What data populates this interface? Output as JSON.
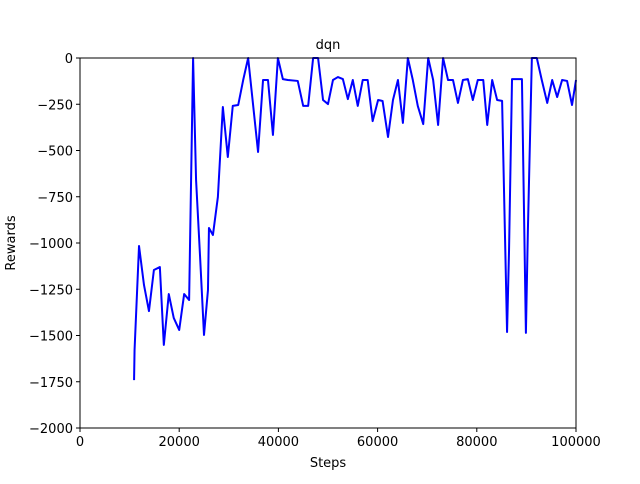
{
  "chart_data": {
    "type": "line",
    "title": "dqn",
    "x_label": "Steps",
    "y_label": "Rewards",
    "color": "#0000ff",
    "x": [
      10900,
      11000,
      11900,
      12900,
      13900,
      14900,
      16100,
      16900,
      17900,
      18900,
      20000,
      21000,
      22000,
      22800,
      23400,
      24200,
      25000,
      25800,
      26000,
      26800,
      27800,
      28800,
      29800,
      30800,
      31900,
      32900,
      33900,
      34900,
      35900,
      36900,
      37900,
      38900,
      39900,
      40900,
      41900,
      43900,
      45000,
      46000,
      47000,
      48000,
      49000,
      50000,
      51000,
      52000,
      53000,
      54000,
      55000,
      56000,
      57000,
      58000,
      59000,
      60100,
      61000,
      62100,
      63100,
      64100,
      65100,
      66100,
      67100,
      68100,
      69200,
      70200,
      71200,
      72200,
      73200,
      74200,
      75200,
      76200,
      77200,
      78200,
      79200,
      80200,
      81300,
      82100,
      83100,
      84100,
      85100,
      86100,
      86500,
      87100,
      88100,
      89100,
      89900,
      90300,
      91100,
      92100,
      93100,
      94200,
      95200,
      96200,
      97200,
      98200,
      99200,
      100000
    ],
    "values": [
      -1741,
      -1578,
      -1016,
      -1227,
      -1368,
      -1146,
      -1130,
      -1551,
      -1276,
      -1405,
      -1470,
      -1276,
      -1308,
      0,
      -659,
      -1070,
      -1497,
      -1254,
      -919,
      -957,
      -751,
      -265,
      -535,
      -259,
      -254,
      -119,
      0,
      -254,
      -508,
      -119,
      -119,
      -416,
      0,
      -114,
      -119,
      -124,
      -259,
      -259,
      0,
      0,
      -227,
      -249,
      -119,
      -103,
      -114,
      -222,
      -119,
      -259,
      -119,
      -119,
      -341,
      -227,
      -232,
      -427,
      -227,
      -119,
      -351,
      0,
      -119,
      -259,
      -357,
      0,
      -119,
      -362,
      0,
      -119,
      -119,
      -243,
      -119,
      -114,
      -227,
      -119,
      -119,
      -362,
      -119,
      -227,
      -232,
      -1481,
      -1038,
      -114,
      -114,
      -114,
      -1486,
      -930,
      0,
      0,
      -119,
      -243,
      -119,
      -211,
      -119,
      -124,
      -254,
      -119
    ],
    "xlim": [
      0,
      100000
    ],
    "ylim": [
      -2000,
      0
    ],
    "xticks": [
      0,
      20000,
      40000,
      60000,
      80000,
      100000
    ],
    "yticks": [
      {
        "value": -2000,
        "label": "−2000"
      },
      {
        "value": -1750,
        "label": "−1750"
      },
      {
        "value": -1500,
        "label": "−1500"
      },
      {
        "value": -1250,
        "label": "−1250"
      },
      {
        "value": -1000,
        "label": "−1000"
      },
      {
        "value": -750,
        "label": "−750"
      },
      {
        "value": -500,
        "label": "−500"
      },
      {
        "value": -250,
        "label": "−250"
      },
      0
    ]
  }
}
